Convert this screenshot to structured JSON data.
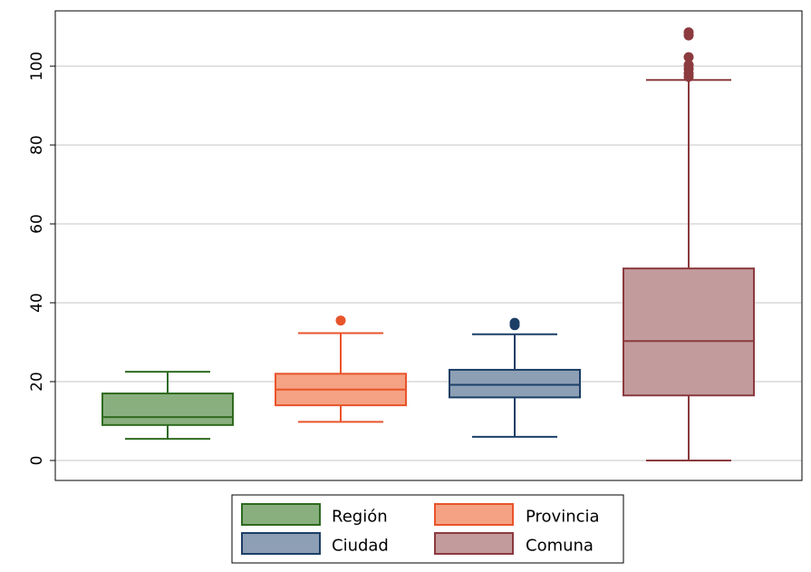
{
  "chart_data": {
    "type": "box",
    "title": "",
    "xlabel": "",
    "ylabel": "",
    "ylim": [
      0,
      110
    ],
    "yticks": [
      "0",
      "20",
      "40",
      "60",
      "80",
      "100"
    ],
    "grid": true,
    "legend_position": "bottom",
    "series": [
      {
        "name": "Región",
        "color": "#2e6b1f",
        "fill": "#8aaf7f",
        "min": 5.5,
        "q1": 9,
        "median": 11,
        "q3": 17,
        "max": 22.5,
        "outliers": []
      },
      {
        "name": "Provincia",
        "color": "#e8542a",
        "fill": "#f4a283",
        "min": 9.8,
        "q1": 14,
        "median": 18,
        "q3": 22,
        "max": 32.3,
        "outliers": [
          35.5
        ]
      },
      {
        "name": "Ciudad",
        "color": "#1c3f66",
        "fill": "#8d9fb5",
        "min": 6,
        "q1": 16,
        "median": 19.2,
        "q3": 23,
        "max": 32,
        "outliers": [
          34.3,
          34.9
        ]
      },
      {
        "name": "Comuna",
        "color": "#8b3a3e",
        "fill": "#c29b9d",
        "min": 0,
        "q1": 16.5,
        "median": 30.3,
        "q3": 48.7,
        "max": 96.5,
        "outliers": [
          97.3,
          98.2,
          99.3,
          100.3,
          102.3,
          107.8,
          108.6
        ]
      }
    ]
  }
}
